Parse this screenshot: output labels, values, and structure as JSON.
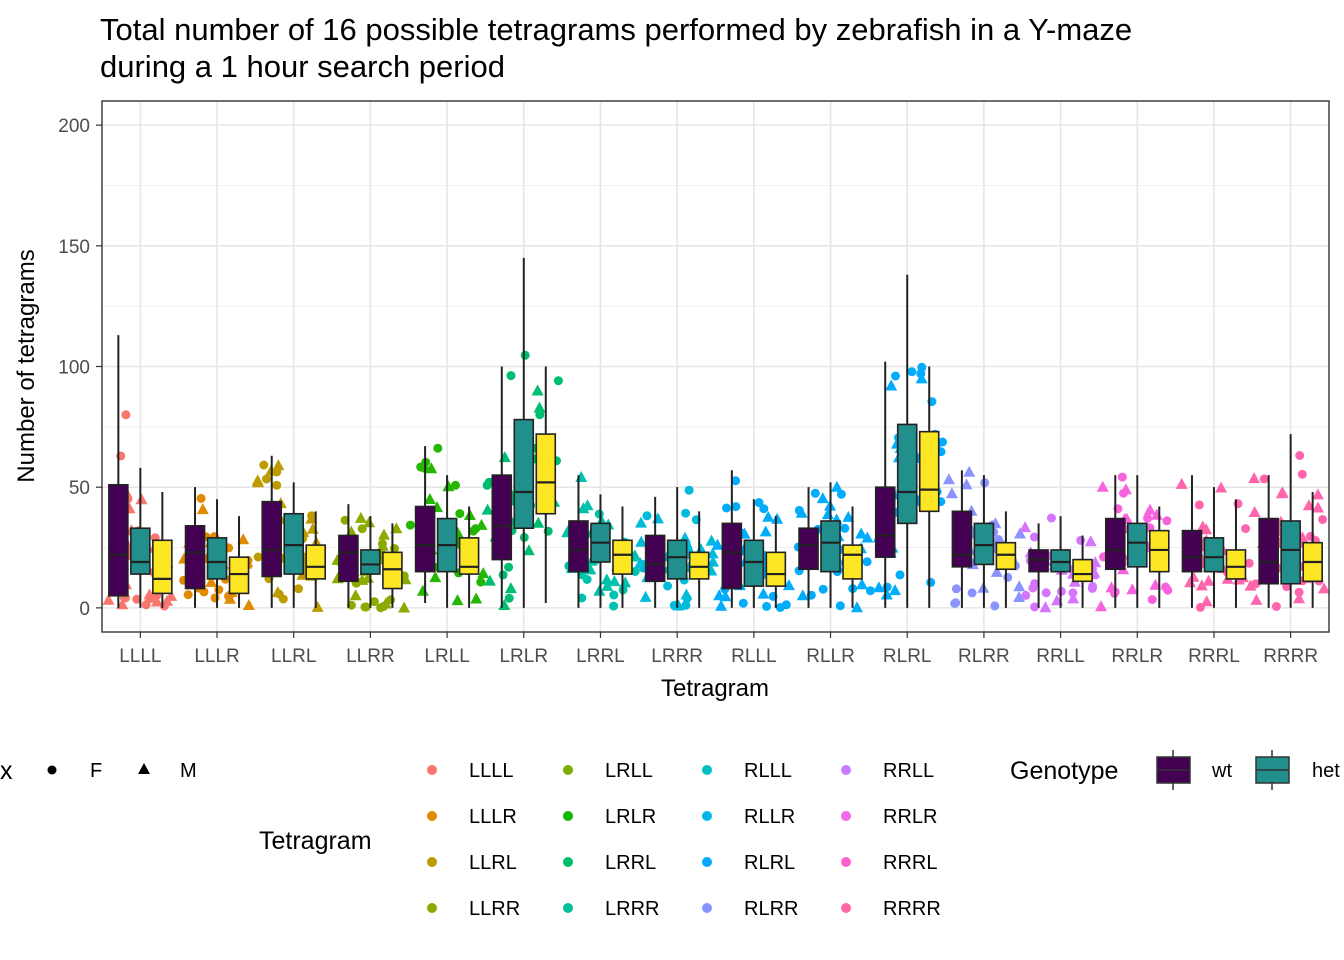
{
  "chart_data": {
    "type": "box",
    "title_lines": [
      "Total number of 16 possible tetragrams performed by zebrafish in a Y-maze",
      "during a 1 hour search period"
    ],
    "xlabel": "Tetragram",
    "ylabel": "Number of tetragrams",
    "ylim": [
      -10,
      210
    ],
    "yticks": [
      0,
      50,
      100,
      150,
      200
    ],
    "grid": true,
    "categories": [
      "LLLL",
      "LLLR",
      "LLRL",
      "LLRR",
      "LRLL",
      "LRLR",
      "LRRL",
      "LRRR",
      "RLLL",
      "RLLR",
      "RLRL",
      "RLRR",
      "RRLL",
      "RRLR",
      "RRRL",
      "RRRR"
    ],
    "tetragram_colors": [
      "#F8766D",
      "#E18A00",
      "#BE9C00",
      "#8CAB00",
      "#24B700",
      "#00BE70",
      "#00C1AB",
      "#00BBDA",
      "#00ACFC",
      "#00ACFC",
      "#00ACFC",
      "#8B93FF",
      "#D575FE",
      "#F962DD",
      "#FF65AC",
      "#FF65AC"
    ],
    "legend_tetragram_colors": [
      "#F8766D",
      "#E18A00",
      "#BE9C00",
      "#8CAB00",
      "#7CAE00",
      "#0CB702",
      "#00BE67",
      "#00C19A",
      "#00BFC4",
      "#00B8E7",
      "#00A9FF",
      "#8494FF",
      "#C77CFF",
      "#ED68ED",
      "#FF61CC",
      "#FF68A1"
    ],
    "genotype_colors": [
      "#440154",
      "#21908C",
      "#FDE725"
    ],
    "series": [
      {
        "name": "wt",
        "q1": [
          5,
          8,
          13,
          11,
          15,
          20,
          15,
          11,
          8,
          16,
          21,
          17,
          15,
          16,
          15,
          10
        ],
        "median": [
          22,
          23,
          24,
          23,
          26,
          34,
          24,
          18,
          23,
          26,
          30,
          22,
          20,
          24,
          21,
          19
        ],
        "q3": [
          51,
          34,
          44,
          30,
          42,
          55,
          36,
          30,
          35,
          33,
          50,
          40,
          24,
          37,
          32,
          37
        ],
        "wmin": [
          0,
          0,
          0,
          0,
          2,
          0,
          0,
          0,
          0,
          0,
          0,
          0,
          0,
          0,
          0,
          0
        ],
        "wmax": [
          113,
          50,
          63,
          43,
          67,
          100,
          55,
          46,
          57,
          50,
          102,
          57,
          35,
          55,
          55,
          55
        ]
      },
      {
        "name": "het",
        "q1": [
          14,
          12,
          14,
          14,
          15,
          33,
          19,
          12,
          9,
          15,
          35,
          18,
          15,
          17,
          15,
          10
        ],
        "median": [
          19,
          19,
          26,
          18,
          26,
          48,
          27,
          21,
          19,
          27,
          48,
          26,
          19,
          27,
          21,
          24
        ],
        "q3": [
          33,
          29,
          39,
          24,
          37,
          78,
          35,
          28,
          28,
          36,
          76,
          35,
          24,
          35,
          29,
          36
        ],
        "wmin": [
          0,
          0,
          0,
          0,
          0,
          0,
          0,
          0,
          0,
          0,
          0,
          0,
          0,
          0,
          0,
          0
        ],
        "wmax": [
          58,
          45,
          52,
          38,
          55,
          145,
          47,
          50,
          45,
          52,
          138,
          55,
          38,
          55,
          50,
          72
        ]
      },
      {
        "name": "",
        "q1": [
          6,
          6,
          12,
          8,
          14,
          39,
          14,
          12,
          9,
          12,
          40,
          16,
          11,
          15,
          12,
          11
        ],
        "median": [
          12,
          14,
          17,
          16,
          17,
          52,
          22,
          17,
          14,
          22,
          49,
          22,
          14,
          24,
          17,
          19
        ],
        "q3": [
          28,
          21,
          26,
          23,
          29,
          72,
          28,
          23,
          23,
          26,
          73,
          27,
          20,
          32,
          24,
          27
        ],
        "wmin": [
          0,
          0,
          0,
          0,
          0,
          2,
          0,
          0,
          0,
          0,
          0,
          0,
          0,
          0,
          0,
          0
        ],
        "wmax": [
          48,
          38,
          40,
          35,
          42,
          100,
          42,
          40,
          38,
          42,
          100,
          40,
          30,
          42,
          45,
          48
        ]
      }
    ]
  },
  "legend": {
    "sex_title": "x",
    "sex_items": [
      "F",
      "M"
    ],
    "tetragram_title": "Tetragram",
    "tetragram_items": [
      "LLLL",
      "LLLR",
      "LLRL",
      "LLRR",
      "LRLL",
      "LRLR",
      "LRRL",
      "LRRR",
      "RLLL",
      "RLLR",
      "RLRL",
      "RLRR",
      "RRLL",
      "RRLR",
      "RRRL",
      "RRRR"
    ],
    "genotype_title": "Genotype",
    "genotype_items": [
      "wt",
      "het"
    ]
  }
}
